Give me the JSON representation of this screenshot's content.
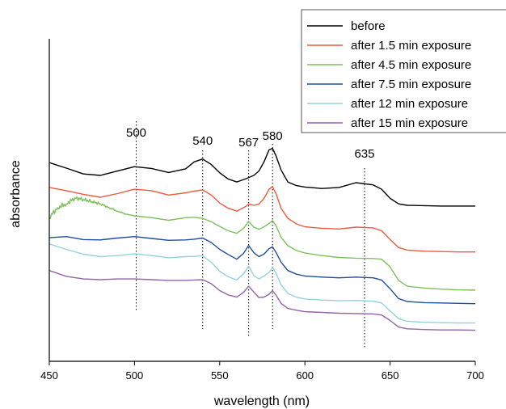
{
  "chart_data": {
    "type": "line",
    "title": "",
    "xlabel": "wavelength (nm)",
    "ylabel": "absorbance",
    "xlim": [
      450,
      700
    ],
    "x_ticks": [
      450,
      500,
      550,
      600,
      650,
      700
    ],
    "y_ticks_shown": false,
    "grid": false,
    "legend_position": "top-right",
    "peak_markers": [
      {
        "label": "500",
        "x": 501
      },
      {
        "label": "540",
        "x": 540
      },
      {
        "label": "567",
        "x": 567
      },
      {
        "label": "580",
        "x": 581
      },
      {
        "label": "635",
        "x": 635
      }
    ],
    "series": [
      {
        "name": "before",
        "color": "#000000",
        "x": [
          450,
          460,
          470,
          480,
          490,
          500,
          510,
          520,
          530,
          535,
          540,
          545,
          550,
          555,
          560,
          565,
          570,
          573,
          576,
          579,
          581,
          583,
          586,
          590,
          595,
          600,
          610,
          620,
          630,
          640,
          645,
          650,
          655,
          660,
          670,
          680,
          690,
          700
        ],
        "y": [
          0.813,
          0.798,
          0.782,
          0.778,
          0.79,
          0.802,
          0.797,
          0.786,
          0.796,
          0.815,
          0.823,
          0.808,
          0.785,
          0.768,
          0.76,
          0.768,
          0.778,
          0.79,
          0.815,
          0.848,
          0.852,
          0.832,
          0.793,
          0.76,
          0.75,
          0.746,
          0.742,
          0.745,
          0.758,
          0.752,
          0.74,
          0.715,
          0.7,
          0.696,
          0.695,
          0.694,
          0.694,
          0.694
        ]
      },
      {
        "name": "after 1.5 min exposure",
        "color": "#ee5a3a",
        "x": [
          450,
          460,
          470,
          480,
          490,
          500,
          510,
          520,
          530,
          535,
          540,
          545,
          550,
          555,
          560,
          565,
          567,
          570,
          573,
          576,
          579,
          581,
          583,
          586,
          590,
          595,
          600,
          610,
          620,
          630,
          640,
          645,
          650,
          655,
          660,
          670,
          680,
          690,
          700
        ],
        "y": [
          0.745,
          0.736,
          0.726,
          0.718,
          0.728,
          0.74,
          0.736,
          0.724,
          0.73,
          0.735,
          0.738,
          0.724,
          0.702,
          0.688,
          0.68,
          0.692,
          0.699,
          0.696,
          0.699,
          0.715,
          0.74,
          0.747,
          0.728,
          0.688,
          0.66,
          0.645,
          0.637,
          0.633,
          0.631,
          0.636,
          0.634,
          0.626,
          0.602,
          0.58,
          0.573,
          0.57,
          0.569,
          0.568,
          0.568
        ]
      },
      {
        "name": "after 4.5 min exposure",
        "color": "#7dc15c",
        "x": [
          450,
          455,
          460,
          465,
          470,
          475,
          480,
          485,
          490,
          495,
          500,
          510,
          520,
          530,
          535,
          540,
          545,
          550,
          555,
          560,
          564,
          567,
          570,
          573,
          576,
          579,
          581,
          583,
          586,
          590,
          595,
          600,
          610,
          620,
          630,
          640,
          645,
          650,
          655,
          660,
          670,
          680,
          690,
          700
        ],
        "y": [
          0.663,
          0.69,
          0.7,
          0.716,
          0.712,
          0.706,
          0.7,
          0.69,
          0.68,
          0.672,
          0.667,
          0.662,
          0.655,
          0.662,
          0.663,
          0.66,
          0.651,
          0.638,
          0.626,
          0.619,
          0.633,
          0.652,
          0.636,
          0.63,
          0.637,
          0.646,
          0.654,
          0.64,
          0.608,
          0.585,
          0.572,
          0.565,
          0.558,
          0.553,
          0.551,
          0.55,
          0.548,
          0.527,
          0.49,
          0.474,
          0.469,
          0.466,
          0.464,
          0.463
        ]
      },
      {
        "name": "after 7.5 min exposure",
        "color": "#1f4e9c",
        "x": [
          450,
          460,
          470,
          480,
          490,
          500,
          510,
          520,
          530,
          535,
          540,
          545,
          550,
          555,
          560,
          564,
          567,
          570,
          573,
          576,
          579,
          581,
          583,
          586,
          590,
          595,
          600,
          610,
          620,
          630,
          640,
          645,
          650,
          655,
          660,
          670,
          680,
          690,
          700
        ],
        "y": [
          0.607,
          0.61,
          0.602,
          0.601,
          0.606,
          0.61,
          0.605,
          0.6,
          0.601,
          0.603,
          0.606,
          0.594,
          0.575,
          0.561,
          0.548,
          0.564,
          0.586,
          0.566,
          0.555,
          0.562,
          0.577,
          0.582,
          0.567,
          0.54,
          0.517,
          0.507,
          0.502,
          0.499,
          0.497,
          0.499,
          0.497,
          0.491,
          0.467,
          0.44,
          0.432,
          0.429,
          0.428,
          0.427,
          0.426
        ]
      },
      {
        "name": "after 12 min exposure",
        "color": "#94d2dc",
        "x": [
          450,
          460,
          470,
          480,
          490,
          500,
          510,
          520,
          530,
          535,
          540,
          545,
          550,
          555,
          560,
          564,
          567,
          570,
          573,
          576,
          579,
          581,
          583,
          586,
          590,
          595,
          600,
          610,
          620,
          630,
          640,
          645,
          650,
          655,
          660,
          670,
          680,
          690,
          700
        ],
        "y": [
          0.59,
          0.575,
          0.562,
          0.555,
          0.558,
          0.563,
          0.558,
          0.552,
          0.555,
          0.556,
          0.557,
          0.54,
          0.515,
          0.5,
          0.491,
          0.508,
          0.529,
          0.503,
          0.494,
          0.502,
          0.512,
          0.525,
          0.51,
          0.478,
          0.454,
          0.444,
          0.439,
          0.436,
          0.434,
          0.435,
          0.433,
          0.428,
          0.406,
          0.385,
          0.378,
          0.375,
          0.374,
          0.373,
          0.373
        ]
      },
      {
        "name": "after 15 min exposure",
        "color": "#9463a8",
        "x": [
          450,
          460,
          470,
          480,
          490,
          500,
          510,
          520,
          530,
          535,
          540,
          545,
          550,
          555,
          560,
          564,
          567,
          570,
          573,
          576,
          579,
          581,
          583,
          586,
          590,
          595,
          600,
          610,
          620,
          630,
          640,
          645,
          650,
          655,
          660,
          670,
          680,
          690,
          700
        ],
        "y": [
          0.517,
          0.501,
          0.494,
          0.492,
          0.494,
          0.494,
          0.492,
          0.49,
          0.49,
          0.491,
          0.492,
          0.481,
          0.462,
          0.45,
          0.444,
          0.457,
          0.474,
          0.458,
          0.443,
          0.444,
          0.452,
          0.462,
          0.45,
          0.427,
          0.413,
          0.408,
          0.404,
          0.402,
          0.4,
          0.399,
          0.398,
          0.395,
          0.38,
          0.362,
          0.357,
          0.355,
          0.354,
          0.354,
          0.353
        ]
      }
    ]
  }
}
